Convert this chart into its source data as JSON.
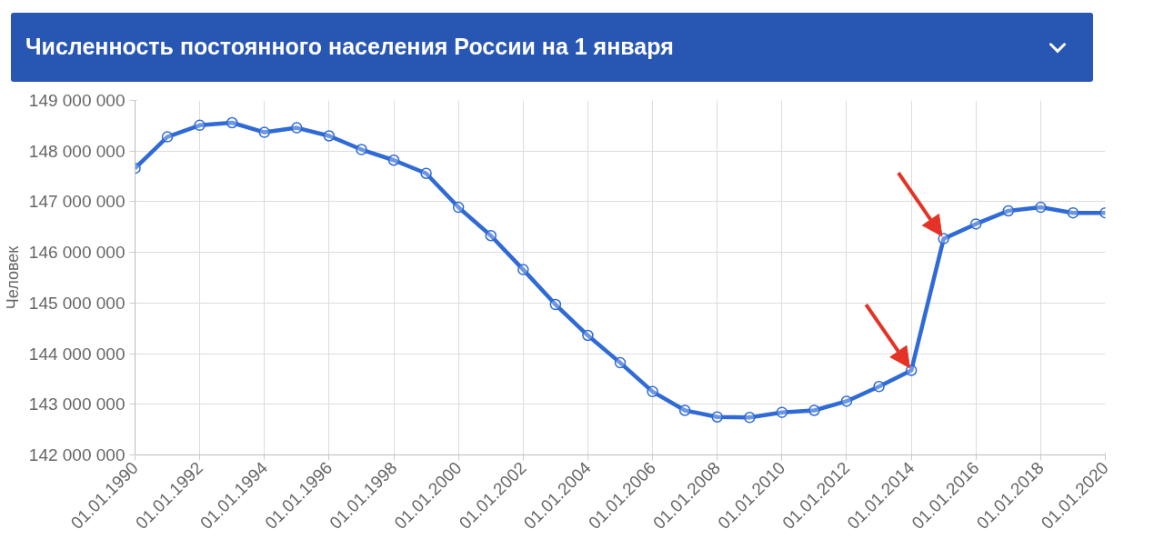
{
  "chart_data": {
    "type": "line",
    "title": "Численность постоянного населения России на 1 января",
    "ylabel": "Человек",
    "x": [
      "1990-01-01",
      "1991-01-01",
      "1992-01-01",
      "1993-01-01",
      "1994-01-01",
      "1995-01-01",
      "1996-01-01",
      "1997-01-01",
      "1998-01-01",
      "1999-01-01",
      "2000-01-01",
      "2001-01-01",
      "2002-01-01",
      "2003-01-01",
      "2004-01-01",
      "2005-01-01",
      "2006-01-01",
      "2007-01-01",
      "2008-01-01",
      "2009-01-01",
      "2010-01-01",
      "2011-01-01",
      "2012-01-01",
      "2013-01-01",
      "2014-01-01",
      "2015-01-01",
      "2016-01-01",
      "2017-01-01",
      "2018-01-01",
      "2019-01-01",
      "2020-01-01"
    ],
    "series": [
      {
        "color": "#2f6ad6",
        "values": [
          147660000,
          148280000,
          148510000,
          148560000,
          148370000,
          148460000,
          148300000,
          148030000,
          147820000,
          147560000,
          146890000,
          146330000,
          145660000,
          144970000,
          144360000,
          143820000,
          143250000,
          142880000,
          142750000,
          142740000,
          142840000,
          142880000,
          143060000,
          143350000,
          143670000,
          146270000,
          146560000,
          146820000,
          146890000,
          146780000,
          146780000
        ]
      }
    ],
    "xlim": [
      "1990-01-01",
      "2020-01-01"
    ],
    "xticks": [
      {
        "value": "1990-01-01",
        "label": "01.01.1990"
      },
      {
        "value": "1992-01-01",
        "label": "01.01.1992"
      },
      {
        "value": "1994-01-01",
        "label": "01.01.1994"
      },
      {
        "value": "1996-01-01",
        "label": "01.01.1996"
      },
      {
        "value": "1998-01-01",
        "label": "01.01.1998"
      },
      {
        "value": "2000-01-01",
        "label": "01.01.2000"
      },
      {
        "value": "2002-01-01",
        "label": "01.01.2002"
      },
      {
        "value": "2004-01-01",
        "label": "01.01.2004"
      },
      {
        "value": "2006-01-01",
        "label": "01.01.2006"
      },
      {
        "value": "2008-01-01",
        "label": "01.01.2008"
      },
      {
        "value": "2010-01-01",
        "label": "01.01.2010"
      },
      {
        "value": "2012-01-01",
        "label": "01.01.2012"
      },
      {
        "value": "2014-01-01",
        "label": "01.01.2014"
      },
      {
        "value": "2016-01-01",
        "label": "01.01.2016"
      },
      {
        "value": "2018-01-01",
        "label": "01.01.2018"
      },
      {
        "value": "2020-01-01",
        "label": "01.01.2020"
      }
    ],
    "ylim": [
      142000000,
      149000000
    ],
    "yticks": [
      {
        "value": 142000000,
        "label": "142 000 000"
      },
      {
        "value": 143000000,
        "label": "143 000 000"
      },
      {
        "value": 144000000,
        "label": "144 000 000"
      },
      {
        "value": 145000000,
        "label": "145 000 000"
      },
      {
        "value": 146000000,
        "label": "146 000 000"
      },
      {
        "value": 147000000,
        "label": "147 000 000"
      },
      {
        "value": 148000000,
        "label": "148 000 000"
      },
      {
        "value": 149000000,
        "label": "149 000 000"
      }
    ],
    "grid": true,
    "marker": "circle"
  }
}
